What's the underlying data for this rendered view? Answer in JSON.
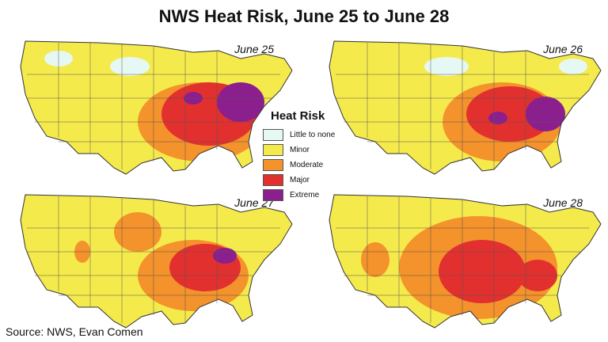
{
  "title": "NWS Heat Risk, June 25 to June 28",
  "source": "Source: NWS, Evan Comen",
  "legend": {
    "title": "Heat Risk",
    "items": [
      {
        "label": "Little to none",
        "color": "#e6f8f4"
      },
      {
        "label": "Minor",
        "color": "#f5ea4c"
      },
      {
        "label": "Moderate",
        "color": "#f4922b"
      },
      {
        "label": "Major",
        "color": "#e2302f"
      },
      {
        "label": "Extreme",
        "color": "#8b1f8e"
      }
    ]
  },
  "panels": [
    {
      "label": "June 25"
    },
    {
      "label": "June 26"
    },
    {
      "label": "June 27"
    },
    {
      "label": "June 28"
    }
  ]
}
